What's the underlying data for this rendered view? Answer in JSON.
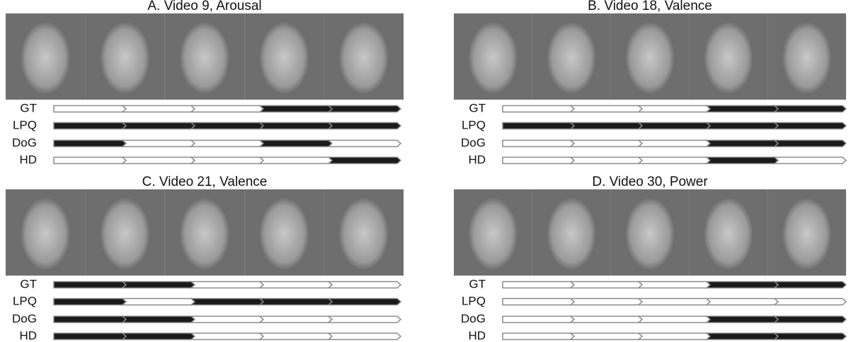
{
  "panels": [
    {
      "title": "A. Video 9, Arousal",
      "rows": [
        {
          "label": "GT",
          "segments": [
            0,
            0,
            0,
            1,
            1
          ]
        },
        {
          "label": "LPQ",
          "segments": [
            1,
            1,
            1,
            1,
            1
          ]
        },
        {
          "label": "DoG",
          "segments": [
            1,
            0,
            0,
            1,
            0
          ]
        },
        {
          "label": "HD",
          "segments": [
            0,
            0,
            0,
            0,
            1
          ]
        }
      ]
    },
    {
      "title": "B. Video 18, Valence",
      "rows": [
        {
          "label": "GT",
          "segments": [
            0,
            0,
            0,
            1,
            1
          ]
        },
        {
          "label": "LPQ",
          "segments": [
            1,
            1,
            1,
            1,
            1
          ]
        },
        {
          "label": "DoG",
          "segments": [
            0,
            0,
            0,
            1,
            1
          ]
        },
        {
          "label": "HD",
          "segments": [
            0,
            0,
            0,
            1,
            0
          ]
        }
      ]
    },
    {
      "title": "C. Video 21, Valence",
      "rows": [
        {
          "label": "GT",
          "segments": [
            1,
            1,
            0,
            0,
            0
          ]
        },
        {
          "label": "LPQ",
          "segments": [
            1,
            0,
            1,
            1,
            1
          ]
        },
        {
          "label": "DoG",
          "segments": [
            1,
            1,
            0,
            0,
            0
          ]
        },
        {
          "label": "HD",
          "segments": [
            1,
            1,
            0,
            0,
            0
          ]
        }
      ]
    },
    {
      "title": "D. Video 30, Power",
      "rows": [
        {
          "label": "GT",
          "segments": [
            0,
            0,
            0,
            1,
            1
          ]
        },
        {
          "label": "LPQ",
          "segments": [
            0,
            0,
            0,
            0,
            0
          ]
        },
        {
          "label": "DoG",
          "segments": [
            0,
            0,
            0,
            1,
            1
          ]
        },
        {
          "label": "HD",
          "segments": [
            0,
            0,
            0,
            1,
            1
          ]
        }
      ]
    }
  ]
}
